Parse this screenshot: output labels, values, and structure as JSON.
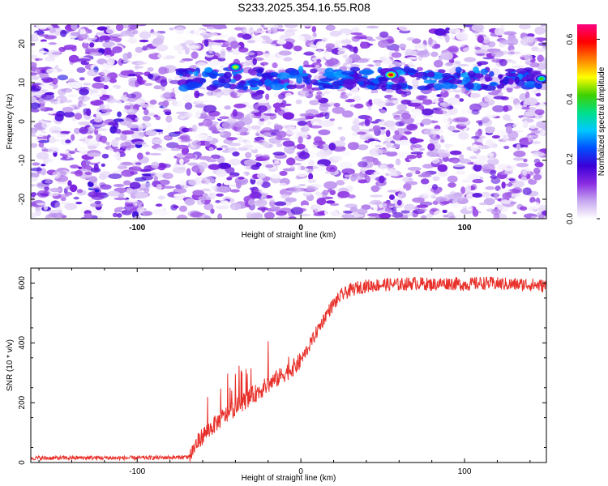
{
  "page_title": "S233.2025.354.16.55.R08",
  "chart_data": [
    {
      "type": "heatmap",
      "xlabel": "Height of straight line (km)",
      "ylabel": "Frequency (Hz)",
      "xlim": [
        -165,
        150
      ],
      "ylim": [
        -25,
        25
      ],
      "x_ticks": [
        -100,
        0,
        100
      ],
      "y_ticks": [
        -20,
        -10,
        0,
        10,
        20
      ],
      "colorbar": {
        "label": "Normalized spectral amplitude",
        "range": [
          0.0,
          0.65
        ],
        "ticks": [
          "0.0",
          "0.2",
          "0.4",
          "0.6"
        ],
        "colors": [
          "#ffffff",
          "#c7a8f0",
          "#8a2be2",
          "#3a00d8",
          "#0050ff",
          "#00c8ff",
          "#00e08a",
          "#40d000",
          "#ffff00",
          "#ff8000",
          "#ff0000",
          "#ff0080"
        ]
      },
      "features": [
        {
          "description_value": "strong band",
          "frequency_hz": 11,
          "x_range": [
            -75,
            150
          ]
        },
        {
          "peak_x": -40,
          "peak_freq": 14,
          "amplitude": 0.45
        },
        {
          "peak_x": 55,
          "peak_freq": 12,
          "amplitude": 0.6
        },
        {
          "peak_x": 147,
          "peak_freq": 11,
          "amplitude": 0.4
        }
      ],
      "grid": false
    },
    {
      "type": "line",
      "xlabel": "Height of straight line (km)",
      "ylabel": "SNR (10 * v/v)",
      "xlim": [
        -165,
        150
      ],
      "ylim": [
        0,
        650
      ],
      "x_ticks": [
        -100,
        0,
        100
      ],
      "y_ticks": [
        0,
        200,
        400,
        600
      ],
      "series": [
        {
          "color": "#e8302a",
          "x": [
            -165,
            -150,
            -130,
            -110,
            -90,
            -75,
            -68,
            -64,
            -60,
            -56,
            -52,
            -48,
            -44,
            -40,
            -36,
            -32,
            -28,
            -24,
            -20,
            -16,
            -12,
            -8,
            -4,
            0,
            4,
            8,
            12,
            16,
            20,
            25,
            30,
            35,
            40,
            50,
            60,
            70,
            80,
            90,
            100,
            110,
            120,
            130,
            140,
            150
          ],
          "y": [
            15,
            15,
            16,
            15,
            16,
            17,
            20,
            60,
            90,
            110,
            130,
            150,
            165,
            185,
            200,
            215,
            230,
            245,
            260,
            275,
            290,
            305,
            320,
            340,
            380,
            420,
            460,
            500,
            530,
            560,
            575,
            585,
            590,
            595,
            595,
            600,
            595,
            600,
            595,
            600,
            598,
            595,
            595,
            590
          ]
        }
      ],
      "grid": false
    }
  ]
}
